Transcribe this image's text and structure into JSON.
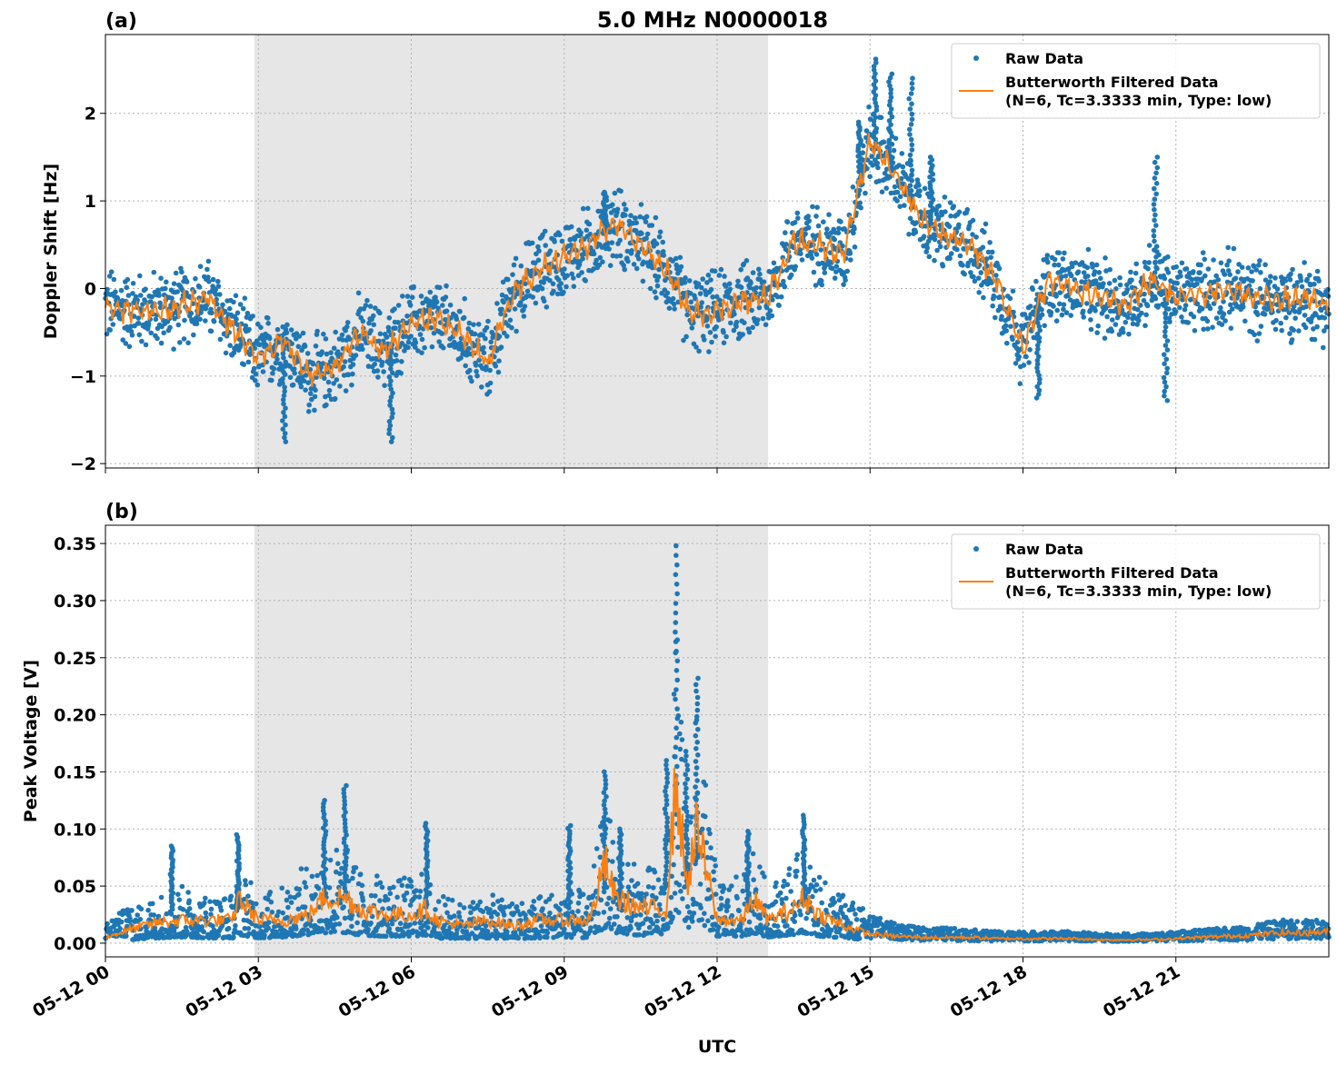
{
  "chart_data": [
    {
      "type": "scatter",
      "title": "5.0 MHz N0000018",
      "panel_label": "(a)",
      "xlabel": "",
      "ylabel": "Doppler Shift [Hz]",
      "ylim": [
        -2.05,
        2.9
      ],
      "xlim": [
        0,
        24
      ],
      "yticks": [
        -2,
        -1,
        0,
        1,
        2
      ],
      "ytick_labels": [
        "−2",
        "−1",
        "0",
        "1",
        "2"
      ],
      "grid": true,
      "legend_position": "top-right",
      "shaded_region": [
        2.92,
        13.0
      ],
      "series": [
        {
          "name": "Raw Data",
          "kind": "points",
          "color": "#1f77b4",
          "spread": 0.35,
          "x": [
            0,
            0.5,
            1,
            1.5,
            2,
            2.5,
            3,
            3.5,
            4,
            4.5,
            5,
            5.5,
            6,
            6.5,
            7,
            7.5,
            8,
            8.5,
            9,
            9.5,
            10,
            10.5,
            11,
            11.5,
            12,
            12.5,
            13,
            13.5,
            14,
            14.5,
            15,
            15.5,
            16,
            16.5,
            17,
            17.5,
            18,
            18.5,
            19,
            19.5,
            20,
            20.5,
            21,
            21.5,
            22,
            22.5,
            23,
            23.5,
            24
          ],
          "y": [
            -0.2,
            -0.25,
            -0.25,
            -0.2,
            -0.1,
            -0.45,
            -0.8,
            -0.6,
            -1.0,
            -0.9,
            -0.5,
            -0.7,
            -0.4,
            -0.35,
            -0.55,
            -0.85,
            -0.05,
            0.2,
            0.35,
            0.5,
            0.75,
            0.5,
            0.2,
            -0.3,
            -0.25,
            -0.15,
            -0.1,
            0.55,
            0.5,
            0.4,
            1.7,
            1.3,
            0.8,
            0.6,
            0.5,
            0.05,
            -0.7,
            0.1,
            0.0,
            -0.1,
            -0.2,
            0.1,
            -0.1,
            -0.05,
            0.0,
            -0.1,
            -0.15,
            -0.1,
            -0.2
          ]
        },
        {
          "name": "Butterworth Filtered Data\n(N=6, Tc=3.3333 min, Type: low)",
          "kind": "line",
          "color": "#ff7f0e",
          "x": [
            0,
            0.5,
            1,
            1.5,
            2,
            2.5,
            3,
            3.5,
            4,
            4.5,
            5,
            5.5,
            6,
            6.5,
            7,
            7.5,
            8,
            8.5,
            9,
            9.5,
            10,
            10.5,
            11,
            11.5,
            12,
            12.5,
            13,
            13.5,
            14,
            14.5,
            15,
            15.5,
            16,
            16.5,
            17,
            17.5,
            18,
            18.5,
            19,
            19.5,
            20,
            20.5,
            21,
            21.5,
            22,
            22.5,
            23,
            23.5,
            24
          ],
          "y": [
            -0.2,
            -0.25,
            -0.25,
            -0.2,
            -0.1,
            -0.45,
            -0.8,
            -0.6,
            -1.0,
            -0.9,
            -0.5,
            -0.7,
            -0.4,
            -0.35,
            -0.55,
            -0.85,
            -0.05,
            0.2,
            0.35,
            0.5,
            0.75,
            0.5,
            0.2,
            -0.3,
            -0.25,
            -0.15,
            -0.1,
            0.55,
            0.5,
            0.4,
            1.7,
            1.3,
            0.8,
            0.6,
            0.5,
            0.05,
            -0.7,
            0.1,
            0.0,
            -0.1,
            -0.2,
            0.1,
            -0.1,
            -0.05,
            0.0,
            -0.1,
            -0.15,
            -0.1,
            -0.2
          ]
        }
      ]
    },
    {
      "type": "scatter",
      "title": "",
      "panel_label": "(b)",
      "xlabel": "UTC",
      "ylabel": "Peak Voltage [V]",
      "ylim": [
        -0.012,
        0.366
      ],
      "xlim": [
        0,
        24
      ],
      "yticks": [
        0.0,
        0.05,
        0.1,
        0.15,
        0.2,
        0.25,
        0.3,
        0.35
      ],
      "ytick_labels": [
        "0.00",
        "0.05",
        "0.10",
        "0.15",
        "0.20",
        "0.25",
        "0.30",
        "0.35"
      ],
      "xticks": [
        0,
        3,
        6,
        9,
        12,
        15,
        18,
        21
      ],
      "xtick_labels": [
        "05-12 00",
        "05-12 03",
        "05-12 06",
        "05-12 09",
        "05-12 12",
        "05-12 15",
        "05-12 18",
        "05-12 21"
      ],
      "grid": true,
      "legend_position": "top-right",
      "shaded_region": [
        2.92,
        13.0
      ],
      "series": [
        {
          "name": "Raw Data",
          "kind": "points",
          "color": "#1f77b4",
          "x": [
            0,
            0.5,
            1,
            1.5,
            2,
            2.5,
            2.6,
            3,
            3.5,
            4,
            4.3,
            4.7,
            5,
            5.5,
            6,
            6.3,
            6.5,
            7,
            7.5,
            8,
            8.5,
            9,
            9.5,
            9.8,
            10,
            10.5,
            11,
            11.2,
            11.4,
            11.6,
            12,
            12.5,
            12.7,
            13,
            13.5,
            13.7,
            14,
            14.5,
            15,
            15.5,
            16,
            16.5,
            17,
            17.5,
            18,
            18.5,
            19,
            19.5,
            20,
            20.5,
            21,
            21.5,
            22,
            22.5,
            23,
            23.5,
            24
          ],
          "y": [
            0.01,
            0.02,
            0.03,
            0.035,
            0.03,
            0.03,
            0.05,
            0.03,
            0.035,
            0.05,
            0.06,
            0.06,
            0.045,
            0.04,
            0.04,
            0.045,
            0.03,
            0.025,
            0.03,
            0.025,
            0.03,
            0.035,
            0.03,
            0.09,
            0.06,
            0.045,
            0.05,
            0.2,
            0.08,
            0.14,
            0.04,
            0.04,
            0.06,
            0.035,
            0.05,
            0.06,
            0.04,
            0.03,
            0.015,
            0.01,
            0.008,
            0.008,
            0.007,
            0.006,
            0.006,
            0.006,
            0.006,
            0.005,
            0.005,
            0.005,
            0.006,
            0.007,
            0.008,
            0.009,
            0.012,
            0.012,
            0.012
          ]
        },
        {
          "name": "Butterworth Filtered Data\n(N=6, Tc=3.3333 min, Type: low)",
          "kind": "line",
          "color": "#ff7f0e",
          "x": [
            0,
            0.5,
            1,
            1.5,
            2,
            2.5,
            2.6,
            3,
            3.5,
            4,
            4.3,
            4.7,
            5,
            5.5,
            6,
            6.3,
            6.5,
            7,
            7.5,
            8,
            8.5,
            9,
            9.5,
            9.8,
            10,
            10.5,
            11,
            11.2,
            11.4,
            11.6,
            12,
            12.5,
            12.7,
            13,
            13.5,
            13.7,
            14,
            14.5,
            15,
            15.5,
            16,
            16.5,
            17,
            17.5,
            18,
            18.5,
            19,
            19.5,
            20,
            20.5,
            21,
            21.5,
            22,
            22.5,
            23,
            23.5,
            24
          ],
          "y": [
            0.005,
            0.012,
            0.018,
            0.02,
            0.02,
            0.02,
            0.04,
            0.02,
            0.02,
            0.025,
            0.04,
            0.04,
            0.03,
            0.025,
            0.025,
            0.03,
            0.02,
            0.015,
            0.02,
            0.015,
            0.02,
            0.02,
            0.02,
            0.07,
            0.04,
            0.03,
            0.03,
            0.145,
            0.05,
            0.1,
            0.02,
            0.02,
            0.04,
            0.02,
            0.03,
            0.04,
            0.025,
            0.015,
            0.008,
            0.006,
            0.005,
            0.005,
            0.005,
            0.004,
            0.004,
            0.004,
            0.004,
            0.003,
            0.003,
            0.003,
            0.004,
            0.005,
            0.006,
            0.007,
            0.009,
            0.009,
            0.01
          ]
        }
      ]
    }
  ]
}
